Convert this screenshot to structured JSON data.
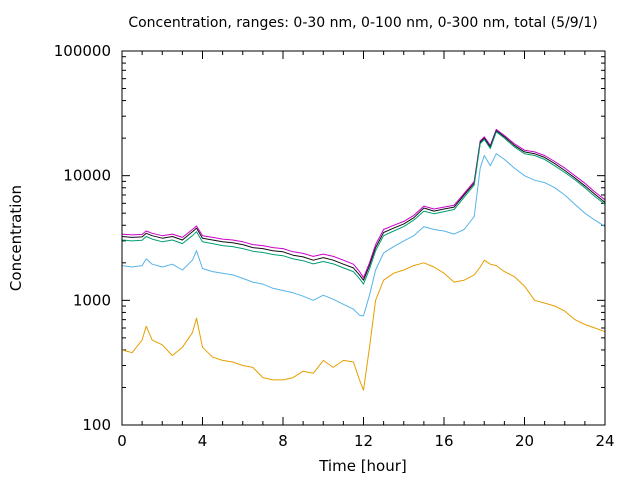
{
  "chart_data": {
    "type": "line",
    "title": "Concentration, ranges: 0-30 nm, 0-100 nm, 0-300 nm, total (5/9/1)",
    "xlabel": "Time [hour]",
    "ylabel": "Concentration",
    "xlim": [
      0,
      24
    ],
    "ylim": [
      100,
      100000
    ],
    "yscale": "log",
    "grid": false,
    "legend": "none",
    "xticks": [
      {
        "value": 0,
        "label": "0"
      },
      {
        "value": 4,
        "label": "4"
      },
      {
        "value": 8,
        "label": "8"
      },
      {
        "value": 12,
        "label": "12"
      },
      {
        "value": 16,
        "label": "16"
      },
      {
        "value": 20,
        "label": "20"
      },
      {
        "value": 24,
        "label": "24"
      }
    ],
    "yticks": [
      {
        "value": 100,
        "label": "100"
      },
      {
        "value": 1000,
        "label": "1000"
      },
      {
        "value": 10000,
        "label": "10000"
      },
      {
        "value": 100000,
        "label": "100000"
      }
    ],
    "x": [
      0,
      0.5,
      1,
      1.2,
      1.5,
      2,
      2.5,
      3,
      3.5,
      3.7,
      4,
      4.5,
      5,
      5.5,
      6,
      6.5,
      7,
      7.5,
      8,
      8.5,
      9,
      9.5,
      10,
      10.5,
      11,
      11.5,
      11.8,
      12,
      12.3,
      12.6,
      13,
      13.5,
      14,
      14.5,
      15,
      15.5,
      16,
      16.5,
      17,
      17.5,
      17.8,
      18,
      18.3,
      18.6,
      19,
      19.5,
      20,
      20.5,
      21,
      21.5,
      22,
      22.5,
      23,
      23.5,
      24
    ],
    "series": [
      {
        "color": "#cc00cc",
        "values": [
          3400,
          3350,
          3380,
          3600,
          3450,
          3300,
          3400,
          3200,
          3700,
          3950,
          3300,
          3200,
          3100,
          3050,
          2950,
          2800,
          2750,
          2650,
          2600,
          2450,
          2380,
          2250,
          2350,
          2250,
          2100,
          1950,
          1700,
          1520,
          2000,
          2800,
          3700,
          4000,
          4300,
          4800,
          5700,
          5400,
          5600,
          5800,
          7200,
          9000,
          19000,
          20500,
          17500,
          23500,
          21000,
          18000,
          16000,
          15500,
          14500,
          13000,
          11500,
          10000,
          8700,
          7400,
          6400
        ]
      },
      {
        "color": "#111111",
        "values": [
          3250,
          3200,
          3230,
          3450,
          3300,
          3150,
          3250,
          3050,
          3550,
          3800,
          3150,
          3050,
          2950,
          2900,
          2800,
          2650,
          2600,
          2500,
          2450,
          2300,
          2230,
          2100,
          2200,
          2100,
          1950,
          1820,
          1600,
          1450,
          1900,
          2650,
          3500,
          3800,
          4100,
          4600,
          5500,
          5200,
          5400,
          5600,
          7000,
          8700,
          18500,
          20000,
          17000,
          23000,
          20500,
          17500,
          15500,
          15000,
          14000,
          12500,
          11000,
          9600,
          8300,
          7100,
          6100
        ]
      },
      {
        "color": "#009e73",
        "values": [
          3050,
          3000,
          3030,
          3250,
          3100,
          2950,
          3050,
          2850,
          3300,
          3550,
          2950,
          2850,
          2750,
          2700,
          2600,
          2480,
          2420,
          2330,
          2280,
          2150,
          2080,
          1960,
          2050,
          1960,
          1820,
          1700,
          1490,
          1350,
          1780,
          2500,
          3300,
          3600,
          3900,
          4400,
          5200,
          4950,
          5150,
          5350,
          6700,
          8400,
          18000,
          19500,
          16500,
          22500,
          20000,
          17000,
          15000,
          14500,
          13500,
          12000,
          10600,
          9300,
          8000,
          6800,
          5900
        ]
      },
      {
        "color": "#56b4e9",
        "values": [
          1900,
          1850,
          1900,
          2150,
          1950,
          1850,
          1950,
          1750,
          2100,
          2500,
          1800,
          1700,
          1650,
          1600,
          1500,
          1400,
          1350,
          1250,
          1200,
          1150,
          1080,
          1000,
          1100,
          1020,
          930,
          850,
          760,
          750,
          1100,
          1750,
          2400,
          2700,
          3000,
          3300,
          3900,
          3700,
          3600,
          3400,
          3700,
          4700,
          11500,
          14500,
          12000,
          15000,
          13500,
          11500,
          10000,
          9200,
          8800,
          8000,
          7000,
          5900,
          5000,
          4400,
          3900
        ]
      },
      {
        "color": "#e69f00",
        "values": [
          400,
          380,
          480,
          620,
          480,
          440,
          360,
          420,
          550,
          720,
          420,
          350,
          330,
          320,
          300,
          290,
          240,
          230,
          230,
          240,
          270,
          260,
          330,
          290,
          330,
          320,
          230,
          190,
          420,
          1000,
          1450,
          1650,
          1750,
          1900,
          2000,
          1850,
          1650,
          1400,
          1450,
          1600,
          1850,
          2100,
          1950,
          1900,
          1700,
          1550,
          1300,
          1000,
          950,
          900,
          820,
          700,
          640,
          600,
          560
        ]
      }
    ]
  }
}
